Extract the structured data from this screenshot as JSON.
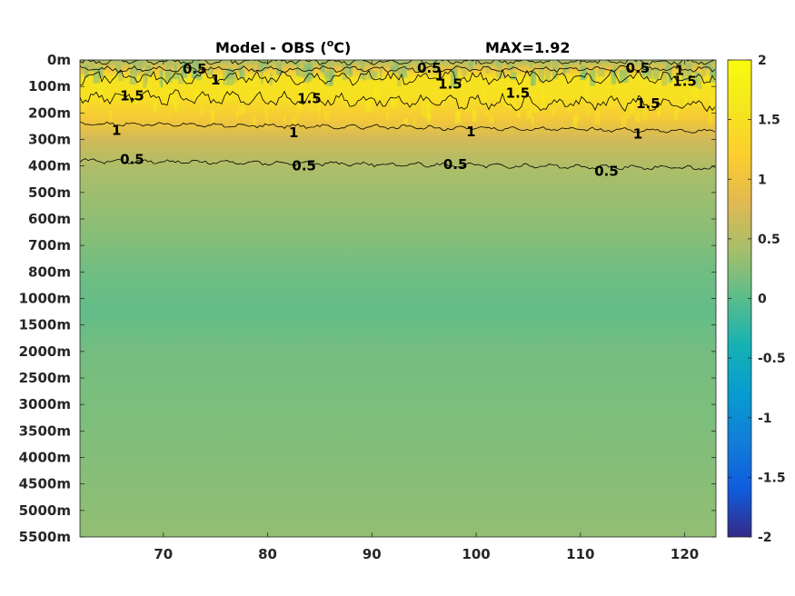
{
  "chart_data": {
    "type": "heatmap",
    "title_left": "Model - OBS (",
    "title_unit_sup": "o",
    "title_unit": "C)",
    "title_right": "MAX=1.92",
    "x_ticks": [
      70,
      80,
      90,
      100,
      110,
      120
    ],
    "xlim": [
      62,
      123
    ],
    "y_tick_labels": [
      "0m",
      "100m",
      "200m",
      "300m",
      "400m",
      "500m",
      "600m",
      "700m",
      "800m",
      "1000m",
      "1500m",
      "2000m",
      "2500m",
      "3000m",
      "3500m",
      "4000m",
      "4500m",
      "5000m",
      "5500m"
    ],
    "colorbar": {
      "ticks": [
        2,
        1.5,
        1,
        0.5,
        0,
        -0.5,
        -1,
        -1.5,
        -2
      ],
      "clim": [
        -2,
        2
      ],
      "colormap": "parula"
    },
    "contour_levels": [
      0.5,
      1,
      1.5
    ],
    "depth_profile": [
      {
        "depth_index": 0.0,
        "value": 0.4
      },
      {
        "depth_index": 0.35,
        "value": 1.0
      },
      {
        "depth_index": 0.7,
        "value": 1.55
      },
      {
        "depth_index": 1.4,
        "value": 1.5
      },
      {
        "depth_index": 2.2,
        "value": 1.1
      },
      {
        "depth_index": 3.0,
        "value": 0.7
      },
      {
        "depth_index": 3.8,
        "value": 0.5
      },
      {
        "depth_index": 4.5,
        "value": 0.4
      },
      {
        "depth_index": 6.5,
        "value": 0.25
      },
      {
        "depth_index": 8.0,
        "value": 0.12
      },
      {
        "depth_index": 9.5,
        "value": 0.05
      },
      {
        "depth_index": 11.0,
        "value": 0.15
      },
      {
        "depth_index": 14.0,
        "value": 0.2
      },
      {
        "depth_index": 16.0,
        "value": 0.25
      },
      {
        "depth_index": 18.0,
        "value": 0.3
      }
    ],
    "contour_labels": [
      {
        "text": "0.5",
        "x": 73.0,
        "depth_index": 0.35
      },
      {
        "text": "1",
        "x": 75.0,
        "depth_index": 0.75
      },
      {
        "text": "1.5",
        "x": 67.0,
        "depth_index": 1.35
      },
      {
        "text": "1.5",
        "x": 84.0,
        "depth_index": 1.45
      },
      {
        "text": "0.5",
        "x": 95.5,
        "depth_index": 0.3
      },
      {
        "text": "1",
        "x": 96.5,
        "depth_index": 0.6
      },
      {
        "text": "1.5",
        "x": 97.5,
        "depth_index": 0.9
      },
      {
        "text": "1.5",
        "x": 104.0,
        "depth_index": 1.25
      },
      {
        "text": "0.5",
        "x": 115.5,
        "depth_index": 0.3
      },
      {
        "text": "1",
        "x": 119.5,
        "depth_index": 0.4
      },
      {
        "text": "1.5",
        "x": 120.0,
        "depth_index": 0.8
      },
      {
        "text": "1.5",
        "x": 116.5,
        "depth_index": 1.65
      },
      {
        "text": "1",
        "x": 65.5,
        "depth_index": 2.65
      },
      {
        "text": "1",
        "x": 82.5,
        "depth_index": 2.75
      },
      {
        "text": "1",
        "x": 99.5,
        "depth_index": 2.7
      },
      {
        "text": "1",
        "x": 115.5,
        "depth_index": 2.8
      },
      {
        "text": "0.5",
        "x": 67.0,
        "depth_index": 3.75
      },
      {
        "text": "0.5",
        "x": 83.5,
        "depth_index": 4.0
      },
      {
        "text": "0.5",
        "x": 98.0,
        "depth_index": 3.95
      },
      {
        "text": "0.5",
        "x": 112.5,
        "depth_index": 4.2
      }
    ]
  }
}
